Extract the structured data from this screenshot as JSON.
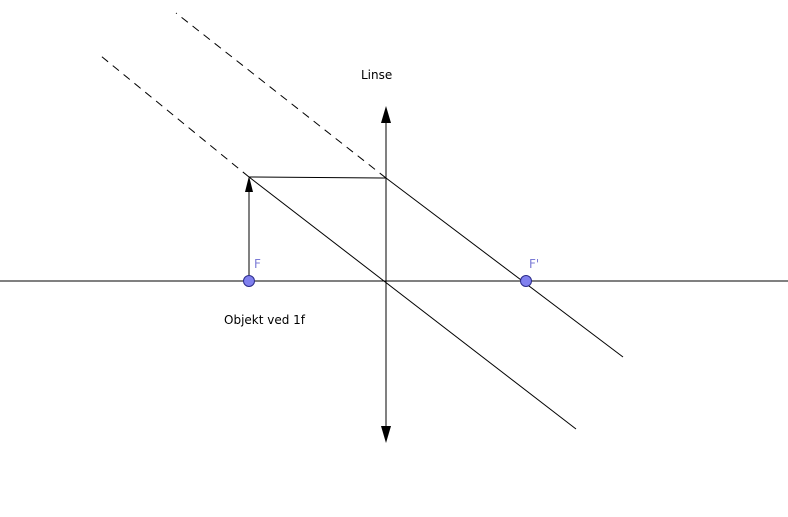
{
  "labels": {
    "lens": "Linse",
    "focal_left": "F",
    "focal_right": "F'",
    "object": "Objekt ved 1f"
  },
  "colors": {
    "lines": "#000000",
    "focal_point_fill": "#8080ee",
    "focal_point_stroke": "#2a2a8a",
    "focal_label": "#7b7bd6",
    "background": "#ffffff"
  }
}
